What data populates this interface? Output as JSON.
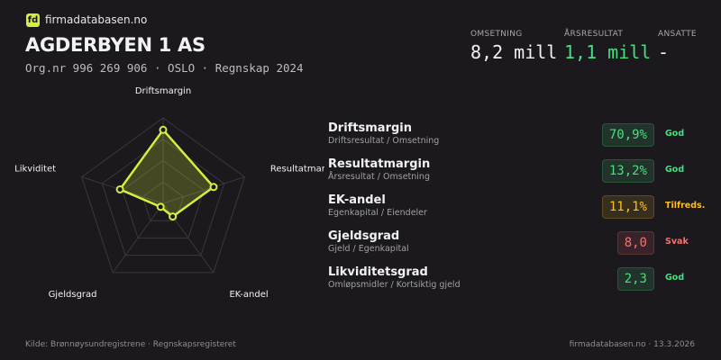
{
  "header": {
    "logo": "fd",
    "site": "firmadatabasen.no",
    "title": "AGDERBYEN 1 AS",
    "subtitle": "Org.nr 996 269 906 · OSLO · Regnskap 2024"
  },
  "stats": [
    {
      "label": "OMSETNING",
      "value": "8,2 mill",
      "color": "#f2f2f2"
    },
    {
      "label": "ÅRSRESULTAT",
      "value": "1,1 mill",
      "color": "#4ade80"
    },
    {
      "label": "ANSATTE",
      "value": "-",
      "color": "#f2f2f2"
    }
  ],
  "chart_data": {
    "type": "radar",
    "categories": [
      "Driftsmargin",
      "Resultatmargin",
      "EK-andel",
      "Gjeldsgrad",
      "Likviditet"
    ],
    "values": [
      86,
      62,
      19,
      5,
      53
    ],
    "rlim": [
      0,
      100
    ],
    "rticks": [
      25,
      50,
      75,
      100
    ],
    "color": "#d4f03c"
  },
  "ratios": [
    {
      "name": "Driftsmargin",
      "formula": "Driftsresultat / Omsetning",
      "value": "70,9%",
      "status": "God",
      "color": "#4ade80"
    },
    {
      "name": "Resultatmargin",
      "formula": "Årsresultat / Omsetning",
      "value": "13,2%",
      "status": "God",
      "color": "#4ade80"
    },
    {
      "name": "EK-andel",
      "formula": "Egenkapital / Eiendeler",
      "value": "11,1%",
      "status": "Tilfreds.",
      "color": "#fbbf24"
    },
    {
      "name": "Gjeldsgrad",
      "formula": "Gjeld / Egenkapital",
      "value": "8,0",
      "status": "Svak",
      "color": "#f87171"
    },
    {
      "name": "Likviditetsgrad",
      "formula": "Omløpsmidler / Kortsiktig gjeld",
      "value": "2,3",
      "status": "God",
      "color": "#4ade80"
    }
  ],
  "footer": {
    "source": "Kilde: Brønnøysundregistrene · Regnskapsregisteret",
    "site_date": "firmadatabasen.no · 13.3.2026"
  }
}
